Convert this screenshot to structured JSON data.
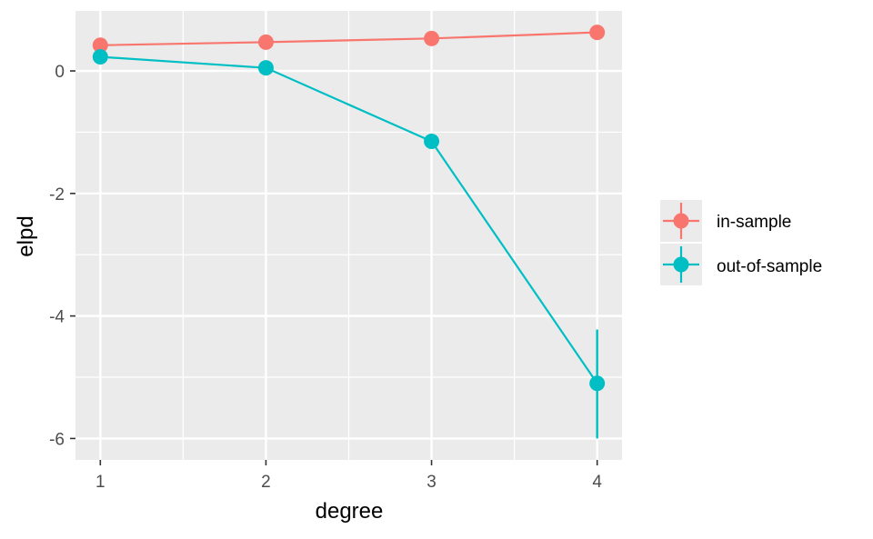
{
  "chart_data": {
    "type": "line",
    "xlabel": "degree",
    "ylabel": "elpd",
    "x": [
      1,
      2,
      3,
      4
    ],
    "x_ticks": [
      "1",
      "2",
      "3",
      "4"
    ],
    "xlim": [
      0.85,
      4.15
    ],
    "ylim": [
      -6.35,
      0.98
    ],
    "y_ticks": [
      0,
      -2,
      -4,
      -6
    ],
    "y_tick_labels": [
      "0",
      "-2",
      "-4",
      "-6"
    ],
    "grid": true,
    "legend_position": "right",
    "series": [
      {
        "name": "in-sample",
        "color": "#F8766D",
        "values": [
          0.42,
          0.47,
          0.53,
          0.63
        ],
        "error_low": [
          0.42,
          0.47,
          0.53,
          0.63
        ],
        "error_high": [
          0.42,
          0.47,
          0.53,
          0.63
        ]
      },
      {
        "name": "out-of-sample",
        "color": "#00BFC4",
        "values": [
          0.23,
          0.05,
          -1.15,
          -5.1
        ],
        "error_low": [
          0.23,
          0.05,
          -1.15,
          -6.0
        ],
        "error_high": [
          0.23,
          0.05,
          -1.15,
          -4.22
        ]
      }
    ]
  }
}
